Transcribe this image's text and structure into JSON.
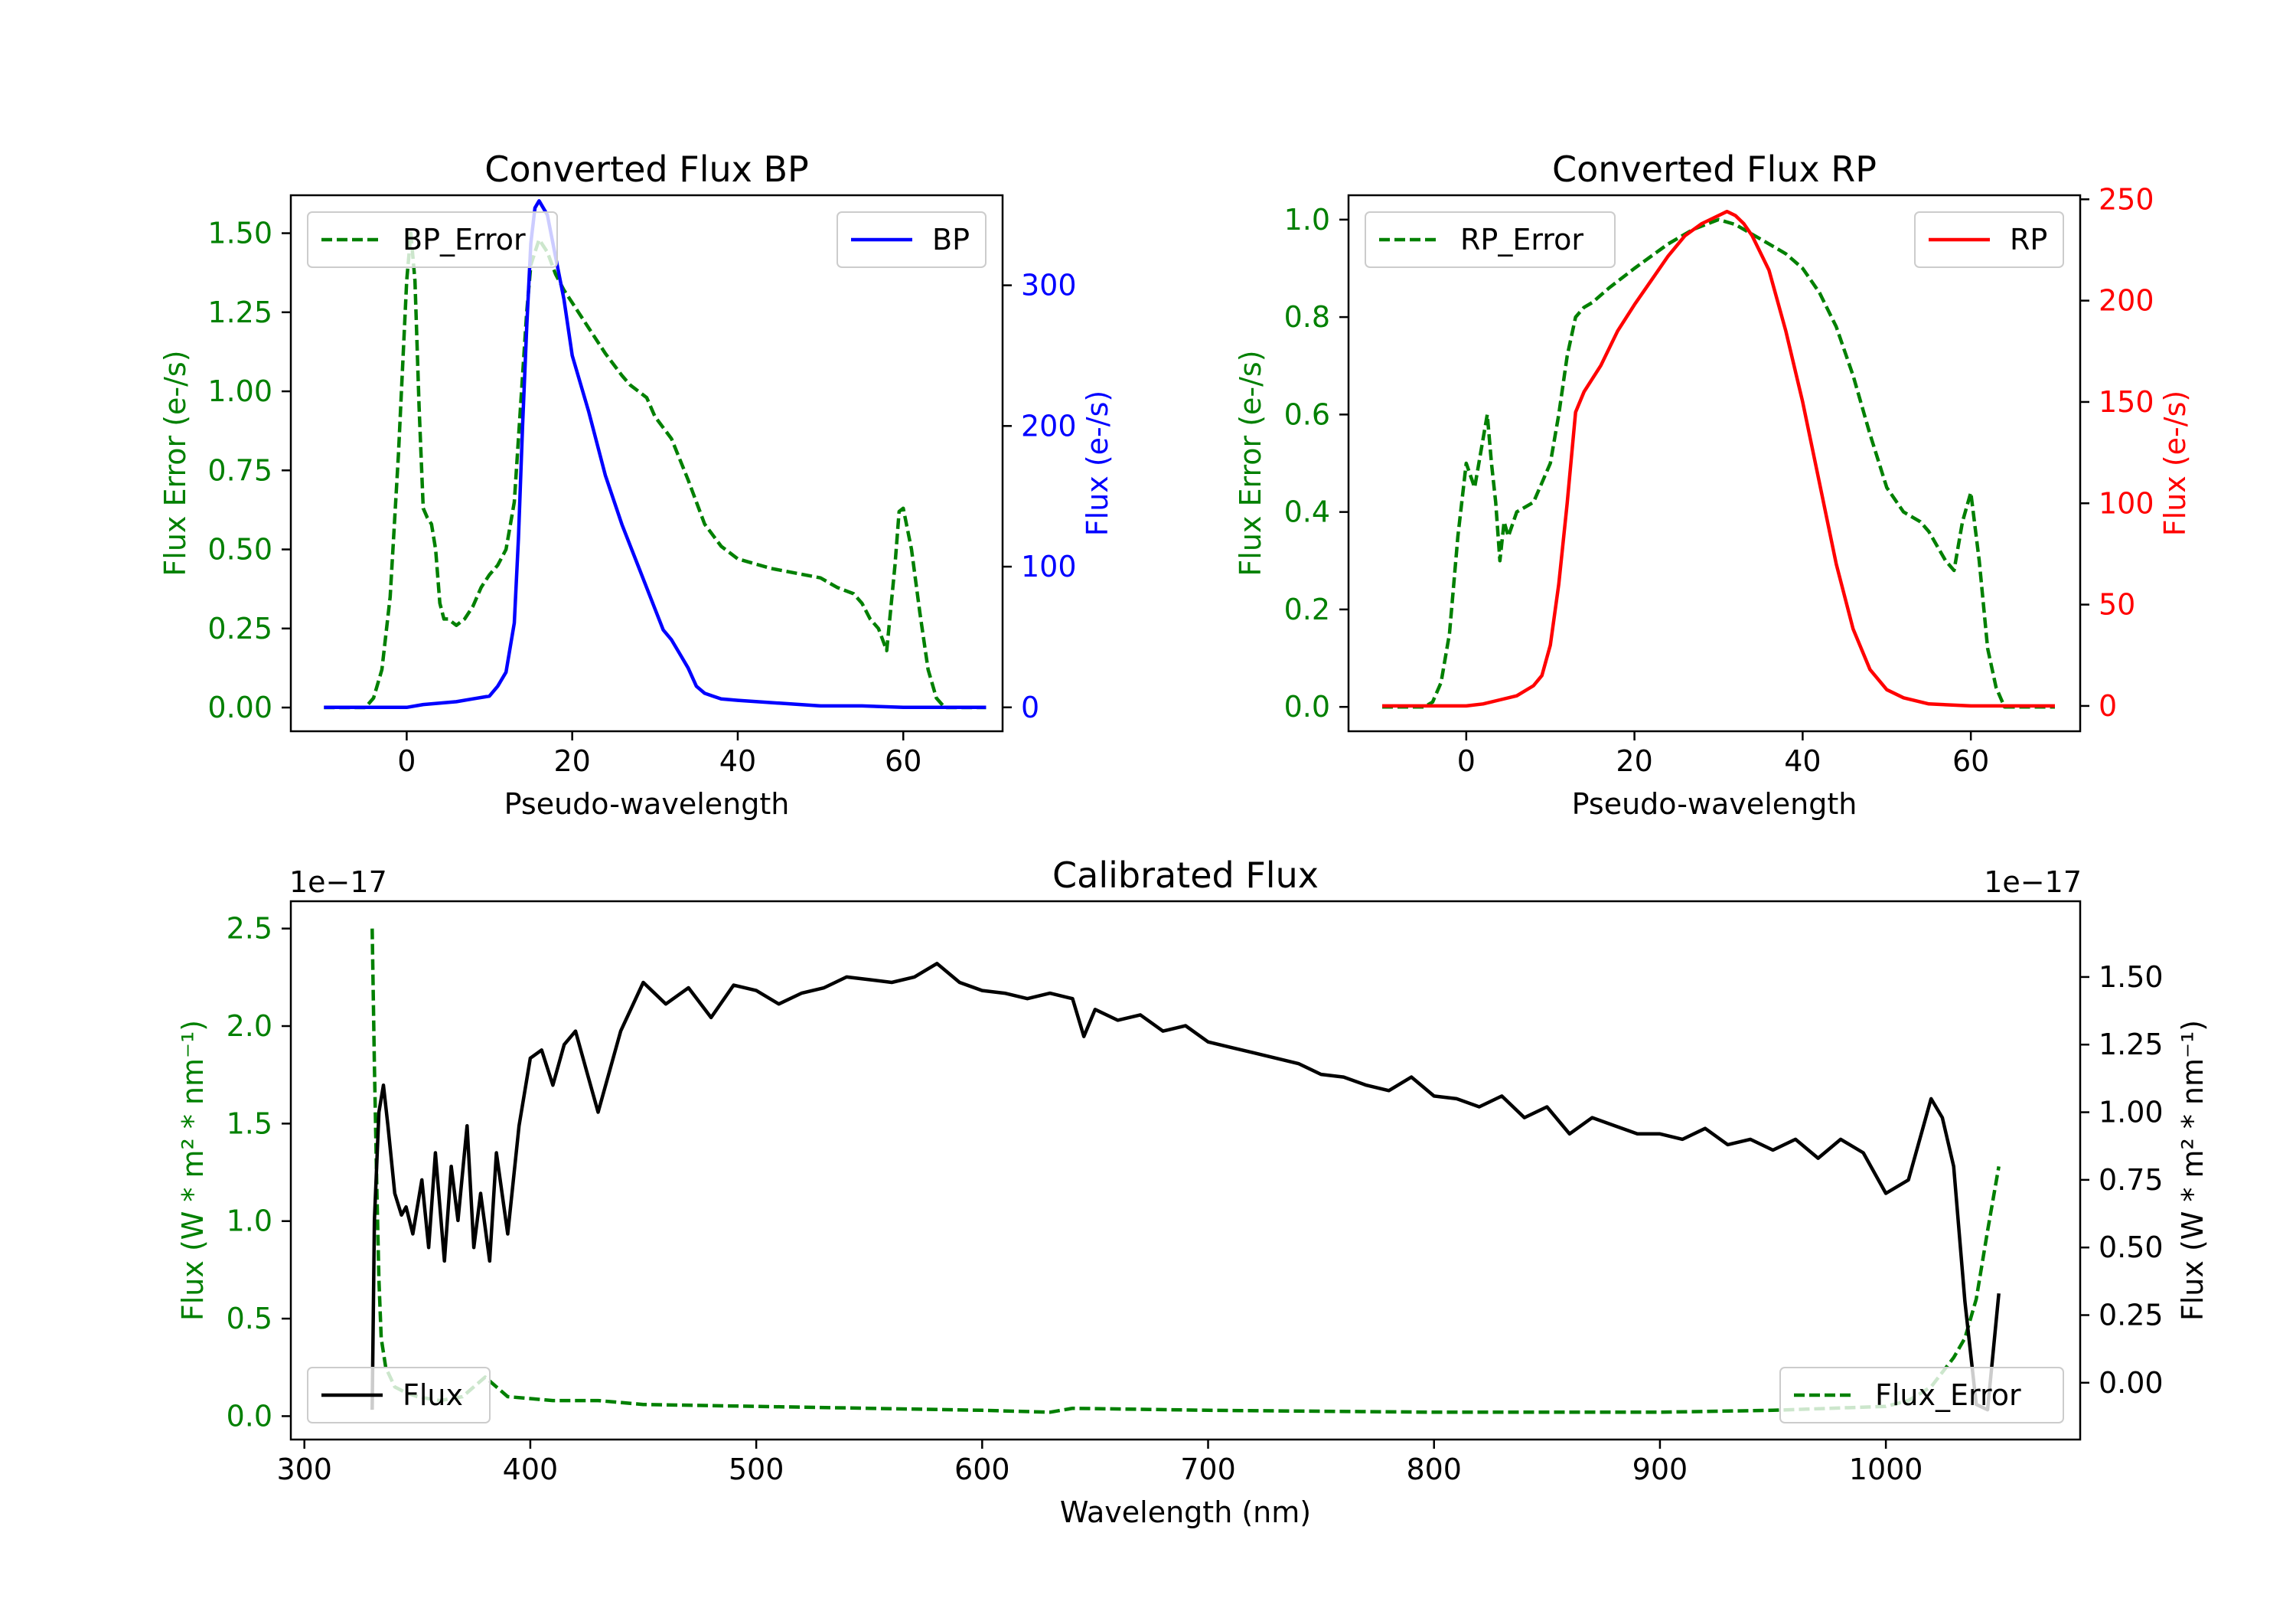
{
  "figure": {
    "background": "#ffffff"
  },
  "colors": {
    "green": "#008000",
    "blue": "#0000ff",
    "red": "#ff0000",
    "black": "#000000"
  },
  "chart_data": [
    {
      "id": "bp",
      "type": "line",
      "title": "Converted Flux BP",
      "xlabel": "Pseudo-wavelength",
      "ylabel_left": "Flux Error (e-/s)",
      "ylabel_right": "Flux (e-/s)",
      "xlim": [
        -14,
        72
      ],
      "ylim_left": [
        -0.075,
        1.62
      ],
      "ylim_right": [
        -17,
        364
      ],
      "x_ticks": [
        0,
        20,
        40,
        60
      ],
      "x_tick_labels": [
        "0",
        "20",
        "40",
        "60"
      ],
      "yleft_ticks": [
        0,
        0.25,
        0.5,
        0.75,
        1.0,
        1.25,
        1.5
      ],
      "yleft_tick_labels": [
        "0.00",
        "0.25",
        "0.50",
        "0.75",
        "1.00",
        "1.25",
        "1.50"
      ],
      "yright_ticks": [
        0,
        100,
        200,
        300
      ],
      "yright_tick_labels": [
        "0",
        "100",
        "200",
        "300"
      ],
      "legend": [
        {
          "label": "BP_Error",
          "style": "dashed",
          "color": "#008000",
          "position": "upper-left"
        },
        {
          "label": "BP",
          "style": "solid",
          "color": "#0000ff",
          "position": "upper-right"
        }
      ],
      "series": [
        {
          "name": "BP_Error",
          "axis": "left",
          "style": "dashed",
          "color": "#008000",
          "x": [
            -10,
            -5,
            -4,
            -3,
            -2,
            -1,
            0,
            0.5,
            1,
            1.5,
            2,
            2.5,
            3,
            3.5,
            4,
            4.5,
            5,
            6,
            7,
            8,
            9,
            10,
            11,
            12,
            13,
            13.5,
            14,
            14.5,
            15,
            16,
            17,
            18,
            19,
            20,
            22,
            24,
            26,
            27,
            28,
            29,
            30,
            32,
            34,
            36,
            38,
            40,
            44,
            48,
            50,
            52,
            54,
            55,
            56,
            57,
            58,
            59,
            59.5,
            60,
            61,
            62,
            63,
            64,
            65,
            70
          ],
          "y": [
            0,
            0,
            0.03,
            0.12,
            0.35,
            0.8,
            1.35,
            1.5,
            1.35,
            0.95,
            0.63,
            0.6,
            0.58,
            0.5,
            0.33,
            0.28,
            0.28,
            0.26,
            0.28,
            0.32,
            0.38,
            0.42,
            0.45,
            0.5,
            0.65,
            0.85,
            1.05,
            1.25,
            1.4,
            1.48,
            1.44,
            1.37,
            1.32,
            1.28,
            1.2,
            1.12,
            1.05,
            1.02,
            1.0,
            0.98,
            0.92,
            0.85,
            0.72,
            0.58,
            0.51,
            0.47,
            0.44,
            0.42,
            0.41,
            0.38,
            0.36,
            0.33,
            0.28,
            0.25,
            0.18,
            0.45,
            0.62,
            0.63,
            0.5,
            0.3,
            0.12,
            0.03,
            0,
            0
          ]
        },
        {
          "name": "BP",
          "axis": "right",
          "style": "solid",
          "color": "#0000ff",
          "x": [
            -10,
            0,
            2,
            4,
            6,
            8,
            10,
            11,
            12,
            13,
            13.5,
            14,
            14.5,
            15,
            15.5,
            16,
            17,
            18,
            19,
            20,
            22,
            24,
            26,
            28,
            30,
            31,
            32,
            33,
            34,
            35,
            36,
            37,
            38,
            40,
            45,
            50,
            55,
            60,
            70
          ],
          "y": [
            0,
            0,
            2,
            3,
            4,
            6,
            8,
            15,
            25,
            60,
            120,
            200,
            270,
            330,
            355,
            360,
            350,
            320,
            290,
            250,
            210,
            165,
            130,
            100,
            70,
            55,
            48,
            38,
            28,
            15,
            10,
            8,
            6,
            5,
            3,
            1,
            1,
            0,
            0
          ]
        }
      ]
    },
    {
      "id": "rp",
      "type": "line",
      "title": "Converted Flux RP",
      "xlabel": "Pseudo-wavelength",
      "ylabel_left": "Flux Error (e-/s)",
      "ylabel_right": "Flux (e-/s)",
      "xlim": [
        -14,
        73
      ],
      "ylim_left": [
        -0.05,
        1.05
      ],
      "ylim_right": [
        -12.5,
        252
      ],
      "x_ticks": [
        0,
        20,
        40,
        60
      ],
      "x_tick_labels": [
        "0",
        "20",
        "40",
        "60"
      ],
      "yleft_ticks": [
        0,
        0.2,
        0.4,
        0.6,
        0.8,
        1.0
      ],
      "yleft_tick_labels": [
        "0.0",
        "0.2",
        "0.4",
        "0.6",
        "0.8",
        "1.0"
      ],
      "yright_ticks": [
        0,
        50,
        100,
        150,
        200,
        250
      ],
      "yright_tick_labels": [
        "0",
        "50",
        "100",
        "150",
        "200",
        "250"
      ],
      "legend": [
        {
          "label": "RP_Error",
          "style": "dashed",
          "color": "#008000",
          "position": "upper-left"
        },
        {
          "label": "RP",
          "style": "solid",
          "color": "#ff0000",
          "position": "upper-right"
        }
      ],
      "series": [
        {
          "name": "RP_Error",
          "axis": "left",
          "style": "dashed",
          "color": "#008000",
          "x": [
            -10,
            -5,
            -4,
            -3,
            -2,
            -1,
            0,
            1,
            2,
            2.5,
            3,
            3.5,
            4,
            4.5,
            5,
            6,
            8,
            10,
            11,
            12,
            13,
            14,
            15,
            17,
            20,
            24,
            27,
            30,
            32,
            34,
            36,
            38,
            40,
            42,
            44,
            46,
            48,
            50,
            52,
            54,
            55,
            56,
            57,
            58,
            59,
            60,
            61,
            62,
            63,
            64,
            70
          ],
          "y": [
            0,
            0,
            0.01,
            0.05,
            0.15,
            0.35,
            0.5,
            0.45,
            0.55,
            0.6,
            0.5,
            0.42,
            0.3,
            0.38,
            0.35,
            0.4,
            0.42,
            0.5,
            0.6,
            0.72,
            0.8,
            0.82,
            0.83,
            0.86,
            0.9,
            0.95,
            0.98,
            1.0,
            0.99,
            0.97,
            0.95,
            0.93,
            0.9,
            0.85,
            0.78,
            0.68,
            0.56,
            0.45,
            0.4,
            0.38,
            0.36,
            0.33,
            0.3,
            0.28,
            0.38,
            0.44,
            0.3,
            0.12,
            0.04,
            0,
            0
          ]
        },
        {
          "name": "RP",
          "axis": "right",
          "style": "solid",
          "color": "#ff0000",
          "x": [
            -10,
            0,
            2,
            4,
            6,
            8,
            9,
            10,
            11,
            12,
            13,
            14,
            16,
            18,
            20,
            22,
            24,
            26,
            28,
            30,
            31,
            32,
            33,
            34,
            36,
            38,
            40,
            42,
            44,
            46,
            48,
            50,
            52,
            55,
            60,
            70
          ],
          "y": [
            0,
            0,
            1,
            3,
            5,
            10,
            15,
            30,
            60,
            100,
            145,
            155,
            168,
            185,
            198,
            210,
            222,
            232,
            238,
            242,
            244,
            242,
            238,
            232,
            215,
            185,
            150,
            110,
            70,
            38,
            18,
            8,
            4,
            1,
            0,
            0
          ]
        }
      ]
    },
    {
      "id": "calibrated",
      "type": "line",
      "title": "Calibrated Flux",
      "xlabel": "Wavelength (nm)",
      "ylabel_left": "Flux (W * m² * nm⁻¹)",
      "ylabel_right": "Flux (W * m² * nm⁻¹)",
      "offset_left": "1e−17",
      "offset_right": "1e−17",
      "xlim": [
        294,
        1086
      ],
      "ylim_left": [
        -0.12,
        2.64
      ],
      "ylim_right": [
        -0.21,
        1.78
      ],
      "x_ticks": [
        300,
        400,
        500,
        600,
        700,
        800,
        900,
        1000
      ],
      "x_tick_labels": [
        "300",
        "400",
        "500",
        "600",
        "700",
        "800",
        "900",
        "1000"
      ],
      "yleft_ticks": [
        0,
        0.5,
        1.0,
        1.5,
        2.0,
        2.5
      ],
      "yleft_tick_labels": [
        "0.0",
        "0.5",
        "1.0",
        "1.5",
        "2.0",
        "2.5"
      ],
      "yright_ticks": [
        0,
        0.25,
        0.5,
        0.75,
        1.0,
        1.25,
        1.5
      ],
      "yright_tick_labels": [
        "0.00",
        "0.25",
        "0.50",
        "0.75",
        "1.00",
        "1.25",
        "1.50"
      ],
      "legend": [
        {
          "label": "Flux",
          "style": "solid",
          "color": "#000000",
          "position": "lower-left"
        },
        {
          "label": "Flux_Error",
          "style": "dashed",
          "color": "#008000",
          "position": "lower-right"
        }
      ],
      "series": [
        {
          "name": "Flux_Error",
          "axis": "left",
          "style": "dashed",
          "color": "#008000",
          "x": [
            330,
            331,
            332,
            333,
            334,
            336,
            340,
            345,
            350,
            360,
            370,
            375,
            380,
            385,
            390,
            400,
            410,
            420,
            430,
            450,
            500,
            550,
            600,
            630,
            640,
            700,
            800,
            900,
            950,
            1000,
            1010,
            1020,
            1030,
            1035,
            1040,
            1045,
            1050
          ],
          "y": [
            2.5,
            1.8,
            1.2,
            0.7,
            0.4,
            0.25,
            0.15,
            0.12,
            0.1,
            0.08,
            0.1,
            0.15,
            0.2,
            0.15,
            0.1,
            0.09,
            0.08,
            0.08,
            0.08,
            0.06,
            0.05,
            0.04,
            0.03,
            0.02,
            0.04,
            0.03,
            0.02,
            0.02,
            0.03,
            0.05,
            0.08,
            0.15,
            0.3,
            0.4,
            0.6,
            0.95,
            1.28
          ]
        },
        {
          "name": "Flux",
          "axis": "right",
          "style": "solid",
          "color": "#000000",
          "x": [
            330,
            331,
            333,
            335,
            337,
            340,
            343,
            345,
            348,
            352,
            355,
            358,
            362,
            365,
            368,
            372,
            375,
            378,
            382,
            385,
            390,
            395,
            400,
            405,
            410,
            415,
            420,
            425,
            430,
            440,
            450,
            460,
            470,
            480,
            490,
            500,
            510,
            520,
            530,
            540,
            550,
            560,
            570,
            580,
            590,
            600,
            610,
            620,
            630,
            640,
            645,
            650,
            660,
            670,
            680,
            690,
            700,
            710,
            720,
            730,
            740,
            750,
            760,
            770,
            780,
            790,
            800,
            810,
            820,
            830,
            840,
            850,
            860,
            870,
            880,
            890,
            900,
            910,
            920,
            930,
            940,
            950,
            960,
            970,
            980,
            990,
            1000,
            1010,
            1020,
            1025,
            1030,
            1035,
            1040,
            1045,
            1050
          ],
          "y": [
            -0.1,
            0.6,
            1.0,
            1.1,
            0.95,
            0.7,
            0.62,
            0.65,
            0.55,
            0.75,
            0.5,
            0.85,
            0.45,
            0.8,
            0.6,
            0.95,
            0.5,
            0.7,
            0.45,
            0.85,
            0.55,
            0.95,
            1.2,
            1.23,
            1.1,
            1.25,
            1.3,
            1.15,
            1.0,
            1.3,
            1.48,
            1.4,
            1.46,
            1.35,
            1.47,
            1.45,
            1.4,
            1.44,
            1.46,
            1.5,
            1.49,
            1.48,
            1.5,
            1.55,
            1.48,
            1.45,
            1.44,
            1.42,
            1.44,
            1.42,
            1.28,
            1.38,
            1.34,
            1.36,
            1.3,
            1.32,
            1.26,
            1.24,
            1.22,
            1.2,
            1.18,
            1.14,
            1.13,
            1.1,
            1.08,
            1.13,
            1.06,
            1.05,
            1.02,
            1.06,
            0.98,
            1.02,
            0.92,
            0.98,
            0.95,
            0.92,
            0.92,
            0.9,
            0.94,
            0.88,
            0.9,
            0.86,
            0.9,
            0.83,
            0.9,
            0.85,
            0.7,
            0.75,
            1.05,
            0.98,
            0.8,
            0.3,
            -0.08,
            -0.1,
            0.33
          ]
        }
      ]
    }
  ]
}
